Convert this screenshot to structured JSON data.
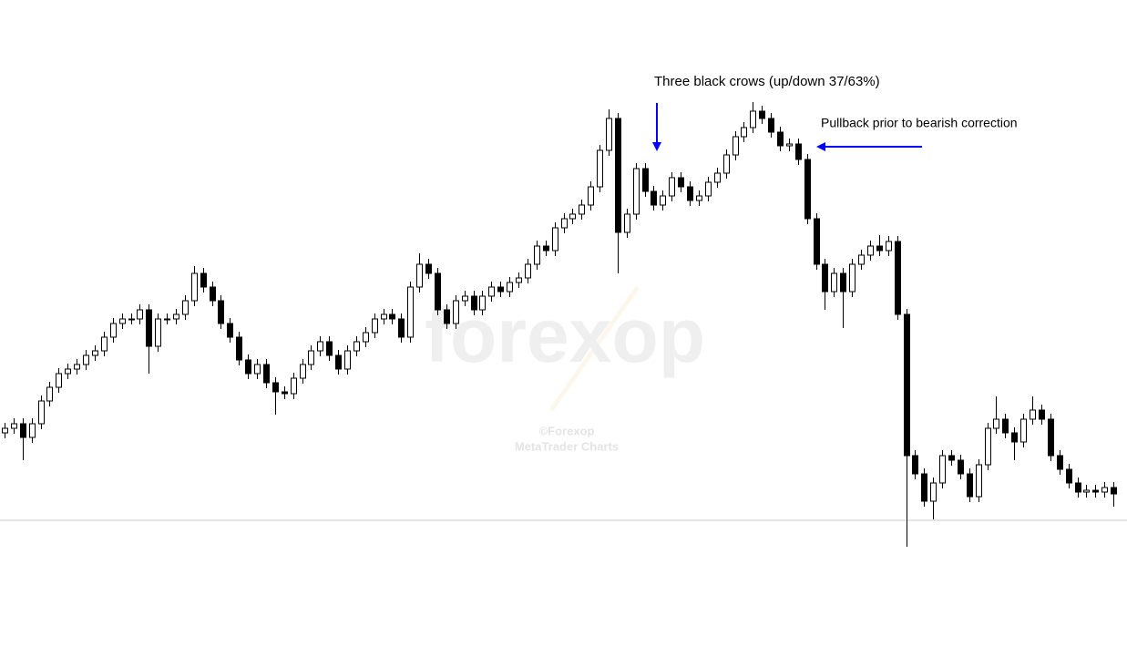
{
  "chart_data": {
    "type": "candlestick",
    "annotations": [
      "Three black crows (up/down 37/63%)",
      "Pullback prior to bearish correction"
    ],
    "watermark": [
      "forexop",
      "©Forexop",
      "MetaTrader Charts"
    ],
    "ylim": [
      0,
      710
    ],
    "price_line": 139,
    "up_color": "#ffffff",
    "down_color": "#000000",
    "outline_color": "#000000",
    "open": [
      235,
      240,
      245,
      230,
      245,
      270,
      285,
      300,
      305,
      310,
      320,
      325,
      340,
      355,
      360,
      360,
      370,
      330,
      360,
      360,
      365,
      380,
      410,
      395,
      380,
      355,
      340,
      315,
      300,
      310,
      290,
      280,
      278,
      295,
      310,
      325,
      335,
      320,
      305,
      325,
      335,
      345,
      360,
      365,
      360,
      340,
      395,
      420,
      410,
      370,
      355,
      380,
      385,
      370,
      385,
      395,
      390,
      400,
      405,
      420,
      440,
      435,
      460,
      470,
      475,
      485,
      505,
      545,
      580,
      455,
      475,
      525,
      500,
      485,
      495,
      515,
      505,
      490,
      495,
      510,
      520,
      540,
      560,
      570,
      588,
      580,
      565,
      550,
      552,
      535,
      470,
      420,
      390,
      410,
      390,
      420,
      430,
      440,
      435,
      445,
      365,
      210,
      190,
      160,
      180,
      210,
      205,
      190,
      165,
      200,
      240,
      250,
      235,
      225,
      250,
      260,
      250,
      210,
      195,
      180,
      170,
      172,
      170,
      175
    ],
    "high": [
      246,
      251,
      251,
      251,
      276,
      291,
      306,
      311,
      316,
      326,
      331,
      346,
      361,
      366,
      366,
      376,
      376,
      366,
      366,
      371,
      386,
      418,
      416,
      401,
      386,
      361,
      346,
      321,
      316,
      316,
      296,
      286,
      301,
      316,
      331,
      341,
      341,
      326,
      331,
      341,
      351,
      366,
      371,
      371,
      366,
      401,
      432,
      426,
      416,
      376,
      386,
      391,
      391,
      391,
      401,
      401,
      406,
      411,
      426,
      446,
      446,
      466,
      476,
      481,
      491,
      511,
      551,
      590,
      586,
      481,
      531,
      531,
      506,
      501,
      521,
      521,
      511,
      501,
      516,
      526,
      546,
      566,
      576,
      598,
      594,
      586,
      571,
      558,
      558,
      541,
      476,
      426,
      416,
      416,
      426,
      436,
      446,
      452,
      451,
      451,
      371,
      216,
      196,
      186,
      216,
      216,
      211,
      196,
      206,
      246,
      275,
      256,
      241,
      256,
      275,
      266,
      256,
      216,
      201,
      186,
      178,
      178,
      181,
      181
    ],
    "low": [
      229,
      234,
      205,
      224,
      239,
      264,
      279,
      294,
      299,
      304,
      314,
      319,
      334,
      349,
      354,
      354,
      300,
      324,
      354,
      354,
      359,
      374,
      389,
      374,
      349,
      334,
      309,
      294,
      294,
      284,
      255,
      272,
      272,
      289,
      304,
      319,
      314,
      299,
      299,
      319,
      329,
      339,
      354,
      354,
      334,
      334,
      389,
      404,
      364,
      349,
      349,
      374,
      364,
      364,
      379,
      384,
      384,
      394,
      399,
      414,
      429,
      429,
      454,
      464,
      469,
      479,
      499,
      539,
      410,
      449,
      469,
      494,
      479,
      479,
      489,
      499,
      484,
      484,
      489,
      504,
      514,
      534,
      554,
      564,
      574,
      559,
      544,
      544,
      529,
      464,
      414,
      370,
      384,
      350,
      384,
      414,
      424,
      429,
      429,
      359,
      110,
      184,
      154,
      140,
      174,
      199,
      184,
      159,
      159,
      194,
      234,
      229,
      205,
      219,
      244,
      244,
      204,
      189,
      174,
      164,
      164,
      164,
      164,
      154
    ],
    "close": [
      240,
      245,
      230,
      245,
      270,
      285,
      300,
      305,
      310,
      320,
      325,
      340,
      355,
      360,
      360,
      370,
      330,
      360,
      360,
      365,
      380,
      410,
      395,
      380,
      355,
      340,
      315,
      300,
      310,
      290,
      280,
      278,
      295,
      310,
      325,
      335,
      320,
      305,
      325,
      335,
      345,
      360,
      365,
      360,
      340,
      395,
      420,
      410,
      370,
      355,
      380,
      385,
      370,
      385,
      395,
      390,
      400,
      405,
      420,
      440,
      435,
      460,
      470,
      475,
      485,
      505,
      545,
      580,
      455,
      475,
      525,
      500,
      485,
      495,
      515,
      505,
      490,
      495,
      510,
      520,
      540,
      560,
      570,
      588,
      580,
      565,
      550,
      552,
      535,
      470,
      420,
      390,
      410,
      390,
      420,
      430,
      440,
      435,
      445,
      365,
      210,
      190,
      160,
      180,
      210,
      205,
      190,
      165,
      200,
      240,
      250,
      235,
      225,
      250,
      260,
      250,
      210,
      195,
      180,
      170,
      172,
      170,
      175,
      168
    ]
  }
}
